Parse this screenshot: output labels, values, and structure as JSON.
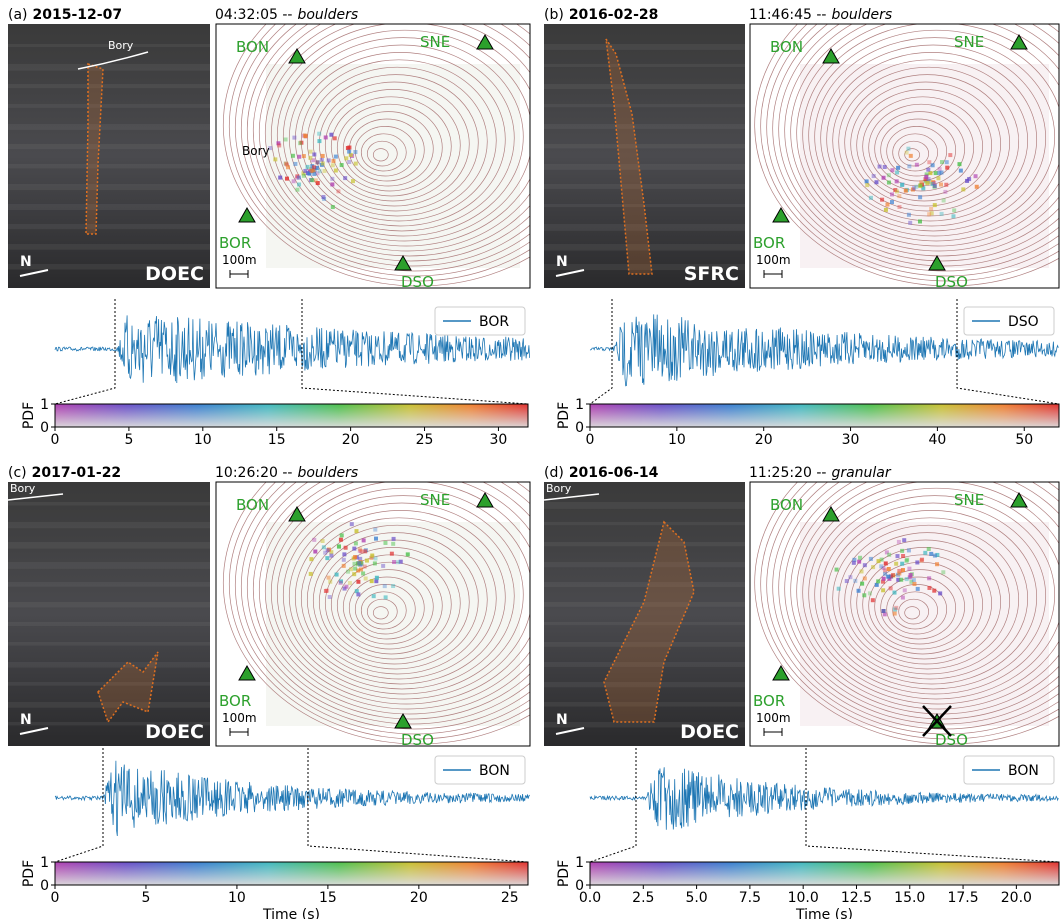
{
  "panels": [
    {
      "label": "(a)",
      "date": "2015-12-07",
      "time": "04:32:05 --",
      "style": "boulders",
      "camera": "DOEC",
      "north": "N",
      "bory_photo": "Bory",
      "bory_map": "Bory",
      "stations": [
        "BON",
        "SNE",
        "BOR",
        "DSO"
      ],
      "scale": "100m",
      "seismo_station": "BOR",
      "pdf_label": "PDF",
      "pdf_ticks": [
        0,
        1
      ],
      "xlim": [
        0,
        32
      ],
      "xticks": [
        0,
        5,
        10,
        15,
        20,
        25,
        30
      ]
    },
    {
      "label": "(b)",
      "date": "2016-02-28",
      "time": "11:46:45 --",
      "style": "boulders",
      "camera": "SFRC",
      "north": "N",
      "stations": [
        "BON",
        "SNE",
        "BOR",
        "DSO"
      ],
      "scale": "100m",
      "seismo_station": "DSO",
      "pdf_label": "PDF",
      "pdf_ticks": [
        0,
        1
      ],
      "xlim": [
        0,
        54
      ],
      "xticks": [
        0,
        10,
        20,
        30,
        40,
        50
      ]
    },
    {
      "label": "(c)",
      "date": "2017-01-22",
      "time": "10:26:20 --",
      "style": "boulders",
      "camera": "DOEC",
      "north": "N",
      "bory_photo": "Bory",
      "stations": [
        "BON",
        "SNE",
        "BOR",
        "DSO"
      ],
      "scale": "100m",
      "seismo_station": "BON",
      "pdf_label": "PDF",
      "pdf_ticks": [
        0,
        1
      ],
      "xlim": [
        0,
        26
      ],
      "xticks": [
        0,
        5,
        10,
        15,
        20,
        25
      ],
      "xlabel": "Time (s)"
    },
    {
      "label": "(d)",
      "date": "2016-06-14",
      "time": "11:25:20 --",
      "style": "granular",
      "camera": "DOEC",
      "north": "N",
      "bory_photo": "Bory",
      "stations": [
        "BON",
        "SNE",
        "BOR",
        "DSO"
      ],
      "scale": "100m",
      "seismo_station": "BON",
      "pdf_label": "PDF",
      "pdf_ticks": [
        0,
        1
      ],
      "xlim": [
        0,
        22
      ],
      "xticks": [
        {
          "value": 0,
          "label": "0.0"
        },
        {
          "value": 2.5,
          "label": "2.5"
        },
        {
          "value": 5,
          "label": "5.0"
        },
        {
          "value": 7.5,
          "label": "7.5"
        },
        {
          "value": 10,
          "label": "10.0"
        },
        {
          "value": 12.5,
          "label": "12.5"
        },
        {
          "value": 15,
          "label": "15.0"
        },
        {
          "value": 17.5,
          "label": "17.5"
        },
        {
          "value": 20,
          "label": "20.0"
        }
      ],
      "xlabel": "Time (s)",
      "dso_offline": true
    }
  ]
}
